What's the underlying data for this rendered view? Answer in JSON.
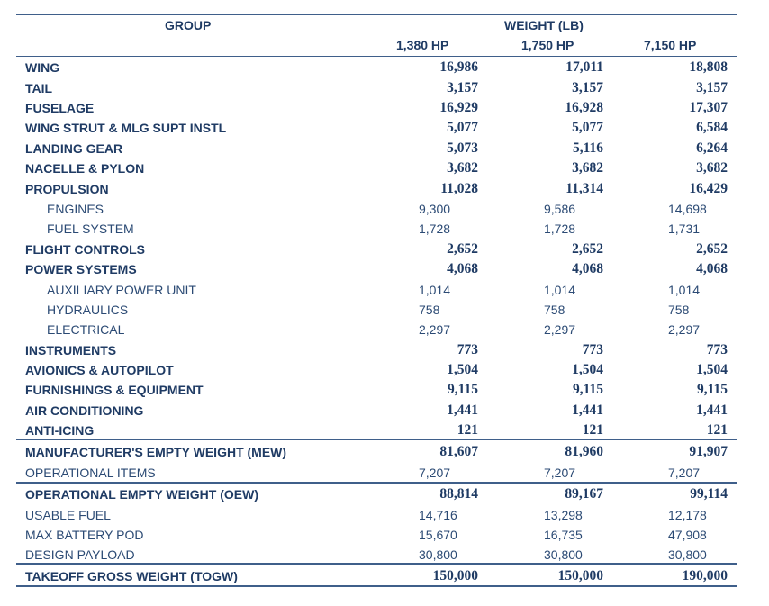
{
  "header": {
    "group_label": "GROUP",
    "weight_label": "WEIGHT (LB)",
    "columns": [
      "1,380 HP",
      "1,750 HP",
      "7,150 HP"
    ]
  },
  "rows": [
    {
      "label": "WING",
      "values": [
        "16,986",
        "17,011",
        "18,808"
      ],
      "style": "bold"
    },
    {
      "label": "TAIL",
      "values": [
        "3,157",
        "3,157",
        "3,157"
      ],
      "style": "bold"
    },
    {
      "label": "FUSELAGE",
      "values": [
        "16,929",
        "16,928",
        "17,307"
      ],
      "style": "bold"
    },
    {
      "label": "WING STRUT & MLG SUPT INSTL",
      "values": [
        "5,077",
        "5,077",
        "6,584"
      ],
      "style": "bold"
    },
    {
      "label": "LANDING GEAR",
      "values": [
        "5,073",
        "5,116",
        "6,264"
      ],
      "style": "bold"
    },
    {
      "label": "NACELLE & PYLON",
      "values": [
        "3,682",
        "3,682",
        "3,682"
      ],
      "style": "bold"
    },
    {
      "label": "PROPULSION",
      "values": [
        "11,028",
        "11,314",
        "16,429"
      ],
      "style": "bold"
    },
    {
      "label": "ENGINES",
      "values": [
        "9,300",
        "9,586",
        "14,698"
      ],
      "style": "sub"
    },
    {
      "label": "FUEL SYSTEM",
      "values": [
        "1,728",
        "1,728",
        "1,731"
      ],
      "style": "sub"
    },
    {
      "label": "FLIGHT CONTROLS",
      "values": [
        "2,652",
        "2,652",
        "2,652"
      ],
      "style": "bold"
    },
    {
      "label": "POWER SYSTEMS",
      "values": [
        "4,068",
        "4,068",
        "4,068"
      ],
      "style": "bold"
    },
    {
      "label": "AUXILIARY POWER UNIT",
      "values": [
        "1,014",
        "1,014",
        "1,014"
      ],
      "style": "sub"
    },
    {
      "label": "HYDRAULICS",
      "values": [
        "758",
        "758",
        "758"
      ],
      "style": "sub"
    },
    {
      "label": "ELECTRICAL",
      "values": [
        "2,297",
        "2,297",
        "2,297"
      ],
      "style": "sub"
    },
    {
      "label": "INSTRUMENTS",
      "values": [
        "773",
        "773",
        "773"
      ],
      "style": "bold"
    },
    {
      "label": "AVIONICS & AUTOPILOT",
      "values": [
        "1,504",
        "1,504",
        "1,504"
      ],
      "style": "bold"
    },
    {
      "label": "FURNISHINGS & EQUIPMENT",
      "values": [
        "9,115",
        "9,115",
        "9,115"
      ],
      "style": "bold"
    },
    {
      "label": "AIR CONDITIONING",
      "values": [
        "1,441",
        "1,441",
        "1,441"
      ],
      "style": "bold"
    },
    {
      "label": "ANTI-ICING",
      "values": [
        "121",
        "121",
        "121"
      ],
      "style": "bold"
    },
    {
      "label": "MANUFACTURER'S EMPTY WEIGHT (MEW)",
      "values": [
        "81,607",
        "81,960",
        "91,907"
      ],
      "style": "bold"
    },
    {
      "label": "OPERATIONAL ITEMS",
      "values": [
        "7,207",
        "7,207",
        "7,207"
      ],
      "style": "plain"
    },
    {
      "label": "OPERATIONAL EMPTY WEIGHT (OEW)",
      "values": [
        "88,814",
        "89,167",
        "99,114"
      ],
      "style": "bold"
    },
    {
      "label": "USABLE FUEL",
      "values": [
        "14,716",
        "13,298",
        "12,178"
      ],
      "style": "plain"
    },
    {
      "label": "MAX BATTERY POD",
      "values": [
        "15,670",
        "16,735",
        "47,908"
      ],
      "style": "plain"
    },
    {
      "label": "DESIGN PAYLOAD",
      "values": [
        "30,800",
        "30,800",
        "30,800"
      ],
      "style": "plain"
    },
    {
      "label": "TAKEOFF GROSS WEIGHT (TOGW)",
      "values": [
        "150,000",
        "150,000",
        "190,000"
      ],
      "style": "bold"
    }
  ]
}
